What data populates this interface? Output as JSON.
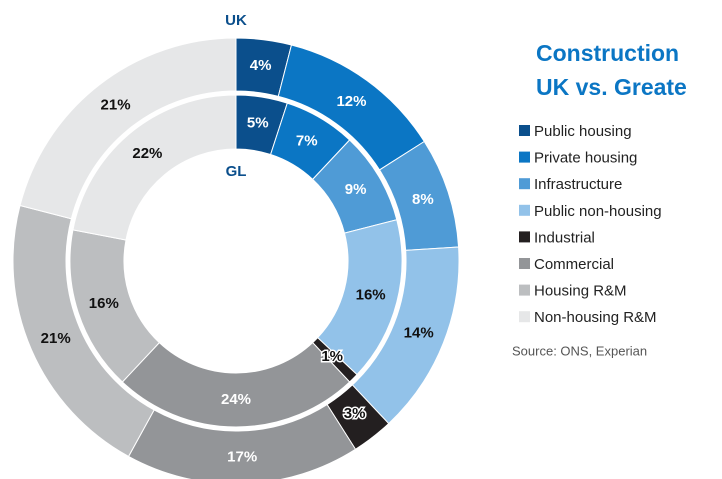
{
  "chart_data": {
    "type": "donut",
    "title": [
      "Construction",
      "UK vs. Greate"
    ],
    "categories": [
      "Public housing",
      "Private housing",
      "Infrastructure",
      "Public non-housing",
      "Industrial",
      "Commercial",
      "Housing R&M",
      "Non-housing R&M"
    ],
    "colors": [
      "#0b4f8c",
      "#0b76c4",
      "#4f9bd6",
      "#92c2e9",
      "#231f20",
      "#939598",
      "#bcbec0",
      "#e6e7e8"
    ],
    "series": [
      {
        "name": "UK",
        "values": [
          4,
          12,
          8,
          14,
          3,
          17,
          21,
          21
        ],
        "value_labels": [
          "4%",
          "12%",
          "8%",
          "14%",
          "3%",
          "17%",
          "21%",
          "21%"
        ]
      },
      {
        "name": "GL",
        "values": [
          5,
          7,
          9,
          16,
          1,
          24,
          16,
          22
        ],
        "value_labels": [
          "5%",
          "7%",
          "9%",
          "16%",
          "1%",
          "24%",
          "16%",
          "22%"
        ]
      }
    ],
    "source": "Source: ONS, Experian"
  }
}
